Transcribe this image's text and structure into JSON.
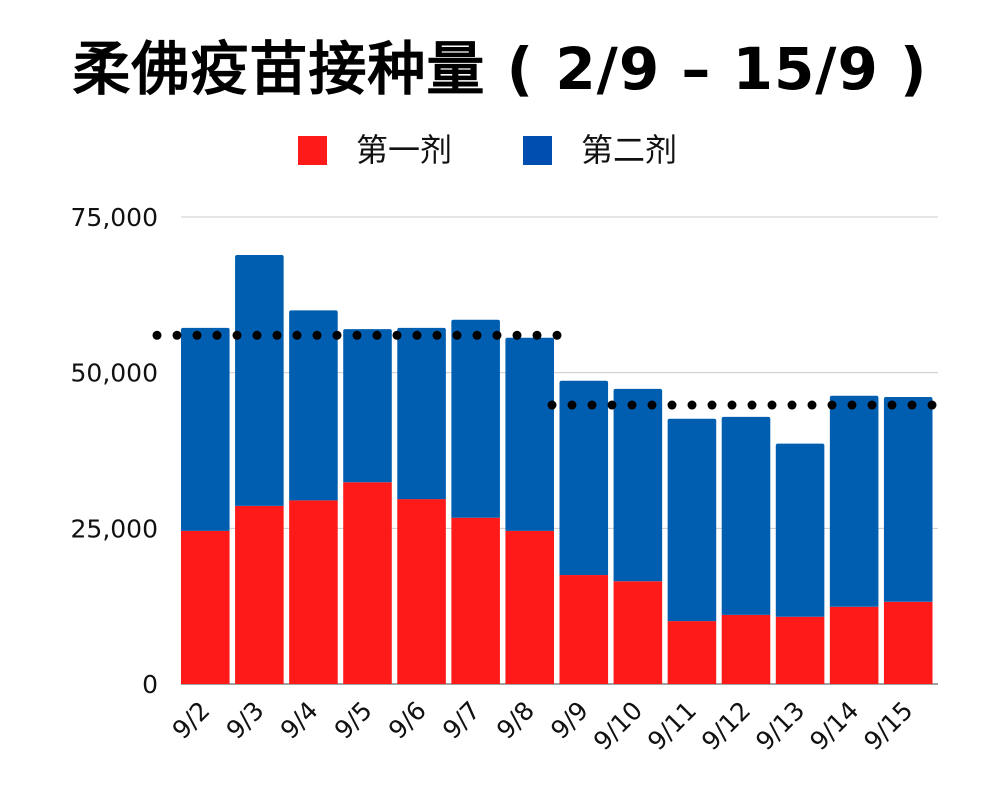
{
  "chart_data": {
    "type": "bar",
    "stacked": true,
    "title": "柔佛疫苗接种量 ( 2/9 – 15/9 )",
    "categories": [
      "9/2",
      "9/3",
      "9/4",
      "9/5",
      "9/6",
      "9/7",
      "9/8",
      "9/9",
      "9/10",
      "9/11",
      "9/12",
      "9/13",
      "9/14",
      "9/15"
    ],
    "series": [
      {
        "name": "第一剂",
        "color": "#ff1a1a",
        "values": [
          24600,
          28600,
          29500,
          32400,
          29700,
          26700,
          24600,
          17500,
          16500,
          10100,
          11100,
          10800,
          12400,
          13200
        ]
      },
      {
        "name": "第二剂",
        "color": "#005eb0",
        "values": [
          32600,
          40300,
          30500,
          24600,
          27500,
          31800,
          31000,
          31200,
          30900,
          32500,
          31800,
          27800,
          33900,
          32900
        ]
      }
    ],
    "reference_lines": [
      {
        "value": 56000,
        "from": "9/2",
        "to": "9/8",
        "style": "dotted",
        "color": "#000000"
      },
      {
        "value": 44800,
        "from": "9/9",
        "to": "9/15",
        "style": "dotted",
        "color": "#000000"
      }
    ],
    "ylim": [
      0,
      75000
    ],
    "yticks": [
      "0",
      "25,000",
      "50,000",
      "75,000"
    ],
    "ytick_values": [
      0,
      25000,
      50000,
      75000
    ],
    "grid": true,
    "legend_position": "top",
    "legend_colors": {
      "first": "#ff1a1a",
      "second": "#004fb0"
    }
  }
}
